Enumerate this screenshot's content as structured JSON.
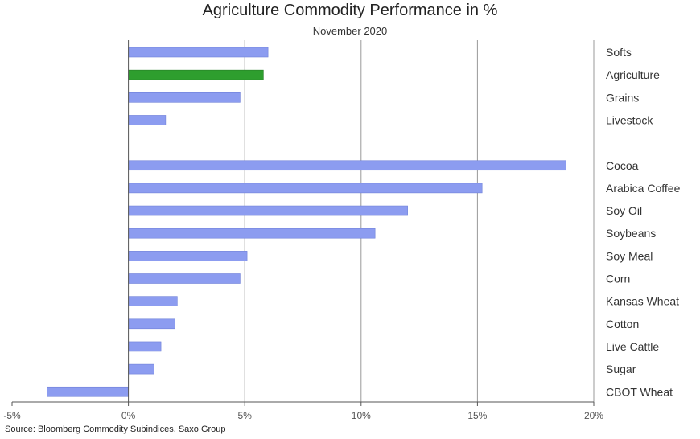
{
  "chart_data": {
    "type": "bar",
    "orientation": "horizontal",
    "title": "Agriculture Commodity Performance in %",
    "subtitle": "November 2020",
    "source": "Source: Bloomberg Commodity Subindices, Saxo Group",
    "categories": [
      "Softs",
      "Agriculture",
      "Grains",
      "Livestock",
      "",
      "Cocoa",
      "Arabica Coffee",
      "Soy Oil",
      "Soybeans",
      "Soy Meal",
      "Corn",
      "Kansas Wheat",
      "Cotton",
      "Live Cattle",
      "Sugar",
      "CBOT Wheat"
    ],
    "values": [
      6.0,
      5.8,
      4.8,
      1.6,
      null,
      18.8,
      15.2,
      12.0,
      10.6,
      5.1,
      4.8,
      2.1,
      2.0,
      1.4,
      1.1,
      -3.5
    ],
    "highlight": "Agriculture",
    "xlim": [
      -5,
      20
    ],
    "xticks": [
      -5,
      0,
      5,
      10,
      15,
      20
    ],
    "xtick_labels": [
      "-5%",
      "0%",
      "5%",
      "10%",
      "15%",
      "20%"
    ],
    "category_label_position": "right",
    "grid": "vertical",
    "colors": {
      "bar": "#8c9cf0",
      "highlight": "#2e9e2e",
      "grid": "#999999",
      "axis": "#555555"
    }
  }
}
